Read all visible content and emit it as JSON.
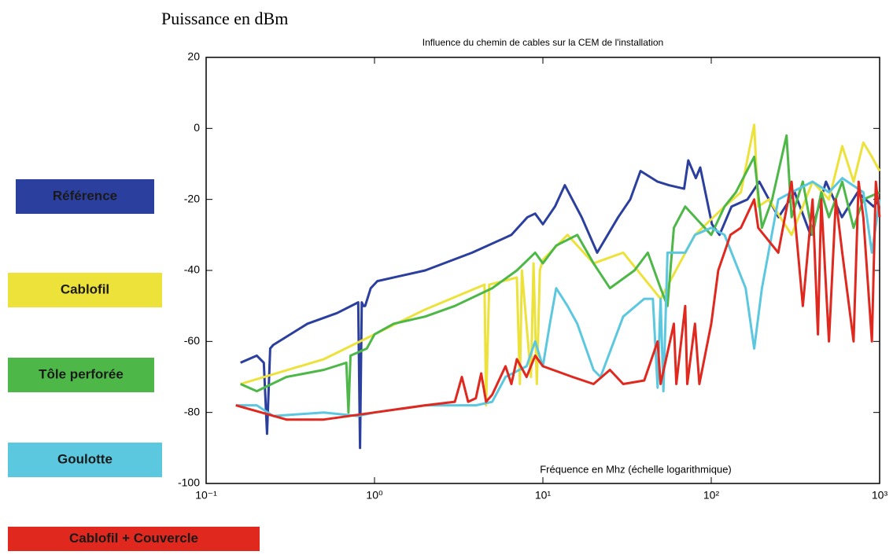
{
  "chart_data": {
    "type": "line",
    "y_label": "Puissance en dBm",
    "title": "Influence du chemin de cables sur la CEM de l'installation",
    "x_label": "Fréquence en Mhz (échelle logarithmique)",
    "xscale": "log",
    "xlim": [
      0.1,
      1000
    ],
    "xticks": [
      {
        "value": 0.1,
        "label": "10⁻¹"
      },
      {
        "value": 1,
        "label": "10⁰"
      },
      {
        "value": 10,
        "label": "10¹"
      },
      {
        "value": 100,
        "label": "10²"
      },
      {
        "value": 1000,
        "label": "10³"
      }
    ],
    "ylim": [
      -100,
      20
    ],
    "yticks": [
      20,
      0,
      -20,
      -40,
      -60,
      -80,
      -100
    ],
    "grid": false,
    "legend": "left",
    "series": [
      {
        "name": "Référence",
        "color": "#2b3f9e",
        "x": [
          0.16,
          0.2,
          0.22,
          0.23,
          0.24,
          0.25,
          0.4,
          0.6,
          0.8,
          0.82,
          0.84,
          0.86,
          0.88,
          0.95,
          1.04,
          2,
          3.8,
          6.5,
          8.1,
          9,
          10,
          11.8,
          13.5,
          17,
          21,
          28,
          33,
          38,
          48,
          56,
          69,
          73,
          81,
          86,
          101,
          112,
          132,
          164,
          193,
          251,
          313,
          389,
          480,
          597,
          741,
          920,
          1000
        ],
        "values": [
          -66,
          -64,
          -66,
          -86,
          -62,
          -61,
          -55,
          -52,
          -49,
          -90,
          -49,
          -50,
          -50,
          -45,
          -43,
          -40,
          -35,
          -30,
          -25,
          -24,
          -27,
          -22,
          -16,
          -25,
          -35,
          -25,
          -20,
          -12,
          -15,
          -16,
          -17,
          -9,
          -14,
          -11,
          -27,
          -30,
          -22,
          -20,
          -15,
          -25,
          -18,
          -30,
          -15,
          -25,
          -18,
          -22,
          -20
        ]
      },
      {
        "name": "Cablofil",
        "color": "#ece23a",
        "x": [
          0.16,
          0.5,
          1,
          2,
          4.5,
          4.6,
          4.8,
          7,
          7.3,
          7.5,
          8.5,
          8.8,
          9.2,
          9.6,
          10,
          14,
          20,
          30,
          50,
          80,
          120,
          150,
          180,
          190,
          220,
          300,
          400,
          500,
          600,
          700,
          800,
          900,
          1000
        ],
        "values": [
          -72,
          -65,
          -58,
          -51,
          -44,
          -78,
          -44,
          -42,
          -72,
          -40,
          -70,
          -38,
          -72,
          -40,
          -37,
          -30,
          -38,
          -35,
          -48,
          -30,
          -22,
          -18,
          1,
          -22,
          -20,
          -30,
          -15,
          -20,
          -5,
          -15,
          -4,
          -8,
          -12
        ]
      },
      {
        "name": "Tôle perforée",
        "color": "#4db848",
        "x": [
          0.16,
          0.2,
          0.3,
          0.5,
          0.68,
          0.7,
          0.72,
          0.9,
          1,
          1.3,
          2,
          3,
          5,
          7,
          9,
          10,
          12,
          16,
          20,
          25,
          35,
          42,
          50,
          55,
          60,
          70,
          80,
          100,
          120,
          140,
          180,
          200,
          230,
          280,
          300,
          350,
          400,
          450,
          500,
          600,
          700,
          800,
          1000
        ],
        "values": [
          -72,
          -74,
          -70,
          -68,
          -66,
          -80,
          -64,
          -62,
          -58,
          -55,
          -53,
          -50,
          -45,
          -40,
          -35,
          -38,
          -33,
          -30,
          -38,
          -45,
          -40,
          -35,
          -45,
          -50,
          -28,
          -22,
          -25,
          -30,
          -22,
          -18,
          -8,
          -28,
          -20,
          -2,
          -25,
          -15,
          -30,
          -18,
          -25,
          -15,
          -28,
          -20,
          -18
        ]
      },
      {
        "name": "Goulotte",
        "color": "#5bc8e0",
        "x": [
          0.15,
          0.2,
          0.25,
          0.5,
          0.8,
          1,
          2,
          3,
          4,
          5,
          6,
          8,
          9,
          10,
          11,
          12,
          14,
          16,
          20,
          22,
          30,
          40,
          45,
          48,
          50,
          52,
          55,
          70,
          80,
          100,
          120,
          160,
          180,
          200,
          250,
          300,
          400,
          500,
          600,
          800,
          900,
          1000
        ],
        "values": [
          -78,
          -78,
          -81,
          -80,
          -81,
          -80,
          -78,
          -78,
          -78,
          -77,
          -70,
          -67,
          -60,
          -67,
          -55,
          -45,
          -50,
          -55,
          -68,
          -70,
          -53,
          -48,
          -48,
          -73,
          -48,
          -74,
          -35,
          -35,
          -30,
          -28,
          -30,
          -45,
          -62,
          -45,
          -20,
          -18,
          -15,
          -18,
          -14,
          -18,
          -35,
          -20
        ]
      },
      {
        "name": "Cablofil + Couvercle",
        "color": "#e0281e",
        "x": [
          0.15,
          0.3,
          0.5,
          1,
          2,
          3,
          3.3,
          3.6,
          4,
          4.3,
          4.6,
          5,
          6,
          6.5,
          7,
          8,
          9,
          10,
          15,
          20,
          25,
          30,
          40,
          48,
          50,
          60,
          62,
          70,
          72,
          80,
          85,
          100,
          110,
          130,
          150,
          180,
          190,
          250,
          300,
          350,
          400,
          430,
          450,
          500,
          550,
          600,
          700,
          750,
          800,
          900,
          950,
          1000
        ],
        "values": [
          -78,
          -82,
          -82,
          -80,
          -78,
          -77,
          -70,
          -77,
          -76,
          -69,
          -77,
          -75,
          -67,
          -72,
          -65,
          -70,
          -64,
          -67,
          -70,
          -72,
          -68,
          -72,
          -71,
          -60,
          -72,
          -55,
          -72,
          -50,
          -72,
          -55,
          -72,
          -55,
          -40,
          -30,
          -28,
          -20,
          -28,
          -35,
          -15,
          -50,
          -20,
          -58,
          -20,
          -60,
          -20,
          -35,
          -60,
          -15,
          -25,
          -60,
          -15,
          -25
        ]
      }
    ]
  }
}
